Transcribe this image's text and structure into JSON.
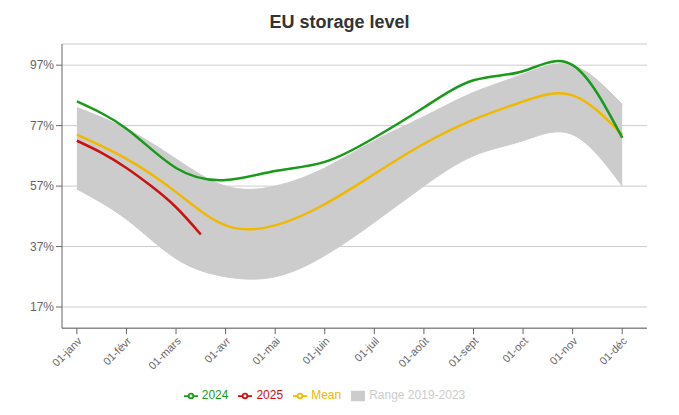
{
  "chart_data": {
    "type": "line",
    "title": "EU storage level",
    "x": [
      0,
      1,
      2,
      3,
      4,
      5,
      6,
      7,
      8,
      9,
      10,
      11
    ],
    "xlim": [
      -0.3,
      11.5
    ],
    "xticks": [
      {
        "value": 0,
        "label": "01-janv"
      },
      {
        "value": 1,
        "label": "01-févr"
      },
      {
        "value": 2,
        "label": "01-mars"
      },
      {
        "value": 3,
        "label": "01-avr"
      },
      {
        "value": 4,
        "label": "01-mai"
      },
      {
        "value": 5,
        "label": "01-juin"
      },
      {
        "value": 6,
        "label": "01-juil"
      },
      {
        "value": 7,
        "label": "01-août"
      },
      {
        "value": 8,
        "label": "01-sept"
      },
      {
        "value": 9,
        "label": "01-oct"
      },
      {
        "value": 10,
        "label": "01-nov"
      },
      {
        "value": 11,
        "label": "01-déc"
      }
    ],
    "ylim": [
      0.1,
      1.04
    ],
    "yticks": [
      {
        "value": 0.17,
        "label": "17%"
      },
      {
        "value": 0.37,
        "label": "37%"
      },
      {
        "value": 0.57,
        "label": "57%"
      },
      {
        "value": 0.77,
        "label": "77%"
      },
      {
        "value": 0.97,
        "label": "97%"
      }
    ],
    "grid": true,
    "legend": "bottom",
    "series": [
      {
        "name": "Range 2019-2023",
        "type": "range",
        "color": "#cccccc",
        "values": [
          [
            0.56,
            0.83
          ],
          [
            0.46,
            0.76
          ],
          [
            0.33,
            0.66
          ],
          [
            0.27,
            0.57
          ],
          [
            0.27,
            0.57
          ],
          [
            0.34,
            0.63
          ],
          [
            0.45,
            0.72
          ],
          [
            0.57,
            0.8
          ],
          [
            0.67,
            0.88
          ],
          [
            0.72,
            0.94
          ],
          [
            0.74,
            0.97
          ],
          [
            0.57,
            0.84
          ]
        ]
      },
      {
        "name": "Mean",
        "type": "line",
        "color": "#f0b800",
        "values": [
          0.74,
          0.66,
          0.55,
          0.44,
          0.44,
          0.51,
          0.61,
          0.71,
          0.79,
          0.85,
          0.87,
          0.74
        ]
      },
      {
        "name": "2025",
        "type": "line",
        "color": "#cc1111",
        "x": [
          0,
          0.5,
          1.0,
          1.5,
          2.0,
          2.5
        ],
        "values": [
          0.72,
          0.68,
          0.63,
          0.57,
          0.5,
          0.41
        ]
      },
      {
        "name": "2024",
        "type": "line",
        "color": "#1a9a1a",
        "values": [
          0.85,
          0.76,
          0.63,
          0.59,
          0.62,
          0.65,
          0.73,
          0.83,
          0.92,
          0.95,
          0.97,
          0.73
        ]
      }
    ]
  }
}
